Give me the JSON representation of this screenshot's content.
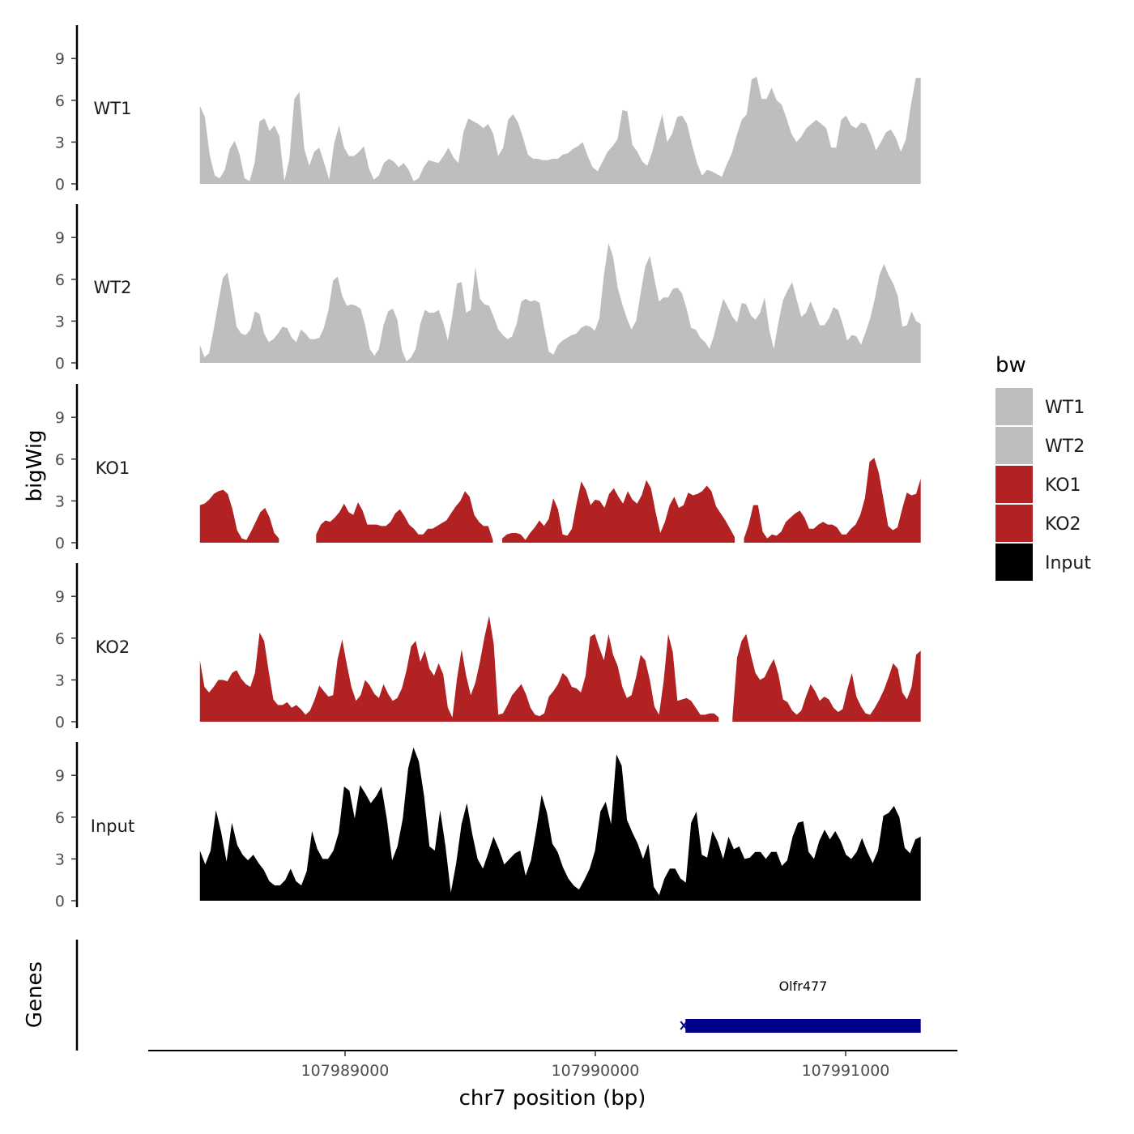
{
  "chart_data": {
    "type": "area",
    "x_start": 107988420,
    "x_end": 107991300,
    "ylim": [
      0,
      11.8
    ],
    "y_ticks": [
      0,
      3,
      6,
      9
    ],
    "y_label": "bigWig",
    "genes_label": "Genes",
    "x_label": "chr7 position (bp)",
    "x_ticks": [
      107989000,
      107990000,
      107991000
    ],
    "legend_title": "bw",
    "tracks": [
      {
        "name": "WT1",
        "color": "#bebebe",
        "values": [
          5.6,
          4.8,
          2.0,
          0.6,
          0.4,
          1.0,
          2.5,
          3.1,
          2.1,
          0.4,
          0.2,
          1.5,
          4.5,
          4.7,
          3.8,
          4.2,
          3.4,
          0.2,
          1.8,
          6.1,
          6.6,
          2.5,
          1.3,
          2.3,
          2.6,
          1.5,
          0.3,
          2.9,
          4.2,
          2.6,
          2.0,
          2.0,
          2.3,
          2.7,
          1.1,
          0.3,
          0.6,
          1.5,
          1.8,
          1.6,
          1.2,
          1.5,
          1.0,
          0.2,
          0.4,
          1.2,
          1.7,
          1.6,
          1.5,
          2.0,
          2.6,
          1.9,
          1.5,
          3.7,
          4.7,
          4.5,
          4.3,
          4.0,
          4.3,
          3.6,
          2.0,
          2.6,
          4.6,
          5.0,
          4.4,
          3.3,
          2.1,
          1.8,
          1.8,
          1.7,
          1.7,
          1.8,
          1.8,
          2.1,
          2.2,
          2.5,
          2.7,
          3.0,
          2.0,
          1.2,
          0.9,
          1.6,
          2.3,
          2.7,
          3.2,
          5.3,
          5.2,
          2.8,
          2.3,
          1.6,
          1.3,
          2.3,
          3.7,
          5.0,
          3.0,
          3.6,
          4.8,
          4.9,
          4.3,
          2.8,
          1.5,
          0.6,
          1.0,
          0.9,
          0.7,
          0.5,
          1.4,
          2.2,
          3.5,
          4.6,
          5.0,
          7.5,
          7.7,
          6.1,
          6.1,
          6.9,
          6.0,
          5.7,
          4.7,
          3.6,
          3.0,
          3.4,
          4.0,
          4.3,
          4.6,
          4.3,
          4.0,
          2.6,
          2.6,
          4.6,
          4.9,
          4.2,
          4.0,
          4.4,
          4.3,
          3.5,
          2.4,
          3.0,
          3.7,
          3.9,
          3.3,
          2.3,
          3.2,
          5.6,
          7.6,
          7.6
        ]
      },
      {
        "name": "WT2",
        "color": "#bebebe",
        "values": [
          1.3,
          0.4,
          0.7,
          2.4,
          4.3,
          6.1,
          6.5,
          4.7,
          2.6,
          2.1,
          2.0,
          2.4,
          3.7,
          3.5,
          2.1,
          1.5,
          1.7,
          2.1,
          2.6,
          2.5,
          1.8,
          1.5,
          2.4,
          2.1,
          1.7,
          1.7,
          1.8,
          2.5,
          3.8,
          5.9,
          6.2,
          4.8,
          4.1,
          4.2,
          4.1,
          3.9,
          2.7,
          1.0,
          0.5,
          1.0,
          2.7,
          3.7,
          3.9,
          3.1,
          0.9,
          0.1,
          0.4,
          1.0,
          2.8,
          3.8,
          3.6,
          3.6,
          3.8,
          2.9,
          1.6,
          3.4,
          5.7,
          5.8,
          3.6,
          3.8,
          6.9,
          4.6,
          4.2,
          4.1,
          3.3,
          2.4,
          2.0,
          1.7,
          1.9,
          2.8,
          4.4,
          4.6,
          4.4,
          4.5,
          4.3,
          2.5,
          0.8,
          0.6,
          1.3,
          1.6,
          1.8,
          2.0,
          2.1,
          2.5,
          2.7,
          2.6,
          2.3,
          3.2,
          6.3,
          8.6,
          7.6,
          5.4,
          4.2,
          3.2,
          2.4,
          3.0,
          5.0,
          6.9,
          7.7,
          6.0,
          4.4,
          4.7,
          4.7,
          5.3,
          5.4,
          5.0,
          3.9,
          2.5,
          2.4,
          1.8,
          1.5,
          1.0,
          2.0,
          3.4,
          4.6,
          4.0,
          3.3,
          2.9,
          4.3,
          4.2,
          3.4,
          3.1,
          3.6,
          4.7,
          2.4,
          1.0,
          2.9,
          4.5,
          5.2,
          5.8,
          4.5,
          3.3,
          3.6,
          4.4,
          3.6,
          2.7,
          2.7,
          3.2,
          4.0,
          3.8,
          2.8,
          1.6,
          2.0,
          1.9,
          1.3,
          2.2,
          3.2,
          4.6,
          6.3,
          7.1,
          6.3,
          5.7,
          4.8,
          2.6,
          2.7,
          3.7,
          3.0,
          2.8
        ]
      },
      {
        "name": "KO1",
        "color": "#b22222",
        "values": [
          2.7,
          2.8,
          3.1,
          3.5,
          3.7,
          3.8,
          3.5,
          2.4,
          0.9,
          0.3,
          0.2,
          0.8,
          1.5,
          2.2,
          2.5,
          1.8,
          0.7,
          0.3,
          null,
          null,
          null,
          null,
          null,
          null,
          null,
          0.6,
          1.3,
          1.6,
          1.5,
          1.8,
          2.2,
          2.8,
          2.2,
          2.0,
          2.9,
          2.3,
          1.3,
          1.3,
          1.3,
          1.2,
          1.2,
          1.5,
          2.1,
          2.4,
          1.9,
          1.3,
          1.0,
          0.6,
          0.6,
          1.0,
          1.0,
          1.2,
          1.4,
          1.6,
          2.1,
          2.6,
          3.0,
          3.7,
          3.3,
          2.0,
          1.5,
          1.2,
          1.2,
          0.2,
          null,
          0.3,
          0.6,
          0.7,
          0.7,
          0.6,
          0.2,
          0.7,
          1.1,
          1.6,
          1.2,
          1.7,
          3.2,
          2.4,
          0.6,
          0.5,
          1.0,
          2.8,
          4.4,
          3.8,
          2.7,
          3.1,
          3.0,
          2.5,
          3.5,
          3.9,
          3.3,
          2.8,
          3.7,
          3.1,
          2.8,
          3.4,
          4.5,
          3.9,
          2.2,
          0.7,
          1.5,
          2.7,
          3.3,
          2.5,
          2.7,
          3.6,
          3.4,
          3.5,
          3.7,
          4.1,
          3.7,
          2.6,
          2.1,
          1.6,
          1.0,
          0.4,
          null,
          0.3,
          1.3,
          2.7,
          2.7,
          0.8,
          0.3,
          0.6,
          0.5,
          0.8,
          1.5,
          1.8,
          2.1,
          2.3,
          1.8,
          1.0,
          1.0,
          1.3,
          1.5,
          1.3,
          1.3,
          1.1,
          0.6,
          0.6,
          1.0,
          1.3,
          2.0,
          3.2,
          5.8,
          6.1,
          5.0,
          3.1,
          1.2,
          0.9,
          1.1,
          2.4,
          3.6,
          3.4,
          3.5,
          4.6
        ]
      },
      {
        "name": "KO2",
        "color": "#b22222",
        "values": [
          4.4,
          2.5,
          2.1,
          2.5,
          3.0,
          3.0,
          2.9,
          3.5,
          3.7,
          3.1,
          2.7,
          2.5,
          3.5,
          6.4,
          5.8,
          3.6,
          1.6,
          1.2,
          1.2,
          1.4,
          1.0,
          1.2,
          0.9,
          0.5,
          0.8,
          1.6,
          2.6,
          2.2,
          1.8,
          1.9,
          4.5,
          5.9,
          4.1,
          2.5,
          1.5,
          1.9,
          3.0,
          2.6,
          2.0,
          1.7,
          2.7,
          2.0,
          1.5,
          1.7,
          2.4,
          3.7,
          5.4,
          5.8,
          4.3,
          5.1,
          3.8,
          3.3,
          4.2,
          3.4,
          1.0,
          0.3,
          3.1,
          5.2,
          3.3,
          1.9,
          2.8,
          4.3,
          6.1,
          7.6,
          5.6,
          0.5,
          0.6,
          1.2,
          1.9,
          2.3,
          2.7,
          2.0,
          1.0,
          0.5,
          0.4,
          0.6,
          1.8,
          2.2,
          2.7,
          3.5,
          3.2,
          2.5,
          2.4,
          2.1,
          3.3,
          6.1,
          6.3,
          5.3,
          4.4,
          6.3,
          4.8,
          4.0,
          2.5,
          1.7,
          1.9,
          3.2,
          4.8,
          4.4,
          3.0,
          1.1,
          0.5,
          2.9,
          6.3,
          5.0,
          1.5,
          1.6,
          1.7,
          1.5,
          1.0,
          0.5,
          0.5,
          0.6,
          0.6,
          0.3,
          null,
          null,
          0.3,
          4.6,
          5.8,
          6.3,
          4.8,
          3.5,
          3.0,
          3.2,
          3.9,
          4.5,
          3.4,
          1.6,
          1.4,
          0.8,
          0.5,
          0.8,
          1.8,
          2.7,
          2.2,
          1.5,
          1.8,
          1.6,
          1.0,
          0.7,
          0.9,
          2.3,
          3.5,
          1.8,
          1.1,
          0.6,
          0.5,
          1.0,
          1.6,
          2.3,
          3.2,
          4.2,
          3.8,
          2.1,
          1.6,
          2.5,
          4.8,
          5.1
        ]
      },
      {
        "name": "Input",
        "color": "#000000",
        "values": [
          3.6,
          2.6,
          3.6,
          6.5,
          4.9,
          2.8,
          5.6,
          4.0,
          3.3,
          2.9,
          3.3,
          2.7,
          2.2,
          1.4,
          1.1,
          1.1,
          1.5,
          2.3,
          1.4,
          1.1,
          2.1,
          5.0,
          3.7,
          3.0,
          3.0,
          3.6,
          4.9,
          8.2,
          7.9,
          5.9,
          8.3,
          7.7,
          7.0,
          7.5,
          8.2,
          5.9,
          2.9,
          3.9,
          5.9,
          9.5,
          11.0,
          10.0,
          7.5,
          3.9,
          3.6,
          6.5,
          3.9,
          0.6,
          2.7,
          5.5,
          7.0,
          4.8,
          3.0,
          2.3,
          3.4,
          4.6,
          3.7,
          2.6,
          3.0,
          3.4,
          3.6,
          1.8,
          2.9,
          5.1,
          7.6,
          6.3,
          4.1,
          3.5,
          2.4,
          1.6,
          1.1,
          0.8,
          1.5,
          2.3,
          3.6,
          6.4,
          7.1,
          5.5,
          10.5,
          9.7,
          5.8,
          4.9,
          4.1,
          3.0,
          4.1,
          1.0,
          0.4,
          1.6,
          2.3,
          2.3,
          1.6,
          1.3,
          5.6,
          6.4,
          3.3,
          3.1,
          5.0,
          4.2,
          3.0,
          4.6,
          3.7,
          3.9,
          3.0,
          3.1,
          3.5,
          3.5,
          3.0,
          3.5,
          3.5,
          2.5,
          2.9,
          4.6,
          5.6,
          5.7,
          3.5,
          3.0,
          4.3,
          5.1,
          4.4,
          5.0,
          4.3,
          3.3,
          3.0,
          3.5,
          4.5,
          3.5,
          2.7,
          3.6,
          6.1,
          6.3,
          6.8,
          6.0,
          3.8,
          3.4,
          4.4,
          4.6
        ]
      }
    ],
    "genes": [
      {
        "name": "Olfr477",
        "start": 107990360,
        "end": 107991300,
        "strand": "-",
        "color": "#00008b"
      }
    ]
  }
}
